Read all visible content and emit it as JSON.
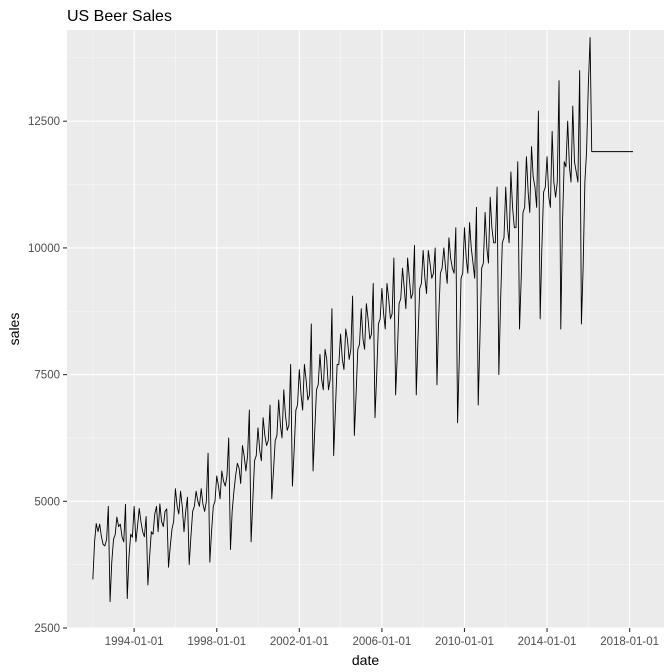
{
  "chart_data": {
    "type": "line",
    "title": "US Beer Sales",
    "xlabel": "date",
    "ylabel": "sales",
    "x_range": [
      "1990-10-01",
      "2019-09-01"
    ],
    "y_range": [
      2500,
      14300
    ],
    "x_ticks": [
      "1994-01-01",
      "1998-01-01",
      "2002-01-01",
      "2006-01-01",
      "2010-01-01",
      "2014-01-01",
      "2018-01-01"
    ],
    "y_ticks": [
      2500,
      5000,
      7500,
      10000,
      12500
    ],
    "grid": true,
    "theme": "ggplot2 grey",
    "colors": {
      "panel": "#ebebeb",
      "grid_major": "#ffffff",
      "grid_minor": "#f7f7f7",
      "line": "#000000"
    },
    "series": [
      {
        "monthly_start": "1992-01-01",
        "values": [
          3460,
          4200,
          4560,
          4400,
          4550,
          4300,
          4150,
          4120,
          4250,
          4900,
          3020,
          3800,
          4250,
          4350,
          4690,
          4500,
          4550,
          4300,
          4200,
          4940,
          3080,
          3900,
          4350,
          4290,
          4900,
          4200,
          4500,
          4860,
          4600,
          4400,
          4300,
          4700,
          3350,
          3900,
          4400,
          4350,
          4750,
          4900,
          4400,
          4950,
          4600,
          4500,
          4800,
          4850,
          3700,
          4100,
          4450,
          4600,
          5250,
          4900,
          4750,
          5200,
          4900,
          4400,
          4800,
          5080,
          3750,
          4300,
          4800,
          4900,
          5200,
          5000,
          4900,
          5250,
          4950,
          4800,
          5000,
          5950,
          3800,
          4400,
          4900,
          5000,
          5500,
          5300,
          5050,
          5600,
          5400,
          5300,
          5500,
          6250,
          4050,
          4800,
          5200,
          5500,
          5750,
          5650,
          5350,
          6100,
          5900,
          5600,
          5900,
          6800,
          4200,
          5000,
          5800,
          5900,
          6450,
          6000,
          5800,
          6650,
          6300,
          6100,
          6200,
          6900,
          5050,
          5600,
          6200,
          6300,
          7000,
          6500,
          6250,
          7200,
          6700,
          6400,
          6500,
          7700,
          5300,
          6000,
          6800,
          6900,
          7600,
          7100,
          6800,
          7700,
          7400,
          7000,
          7100,
          8500,
          5600,
          6400,
          7200,
          7300,
          7900,
          7400,
          7200,
          8000,
          7800,
          7200,
          7400,
          8800,
          5900,
          6800,
          7700,
          7700,
          8300,
          7800,
          7600,
          8400,
          8200,
          7800,
          8000,
          9050,
          6300,
          7100,
          8000,
          8100,
          8800,
          8200,
          8000,
          8900,
          8600,
          8200,
          8300,
          9300,
          6650,
          7500,
          8500,
          8600,
          9200,
          8700,
          8400,
          9300,
          9000,
          8600,
          8700,
          9800,
          7100,
          7900,
          8900,
          9000,
          9600,
          9200,
          8800,
          9800,
          9400,
          9000,
          9100,
          10050,
          7100,
          8200,
          9200,
          9300,
          9950,
          9400,
          9100,
          9950,
          9700,
          9400,
          9500,
          10000,
          7300,
          8600,
          9500,
          9600,
          10000,
          9600,
          9300,
          10200,
          9800,
          9600,
          9500,
          10400,
          6550,
          7800,
          9400,
          9500,
          10400,
          9800,
          9500,
          10500,
          10000,
          9700,
          9400,
          10800,
          6900,
          8200,
          9600,
          9700,
          10700,
          10000,
          9700,
          11000,
          10400,
          10100,
          10100,
          11200,
          7500,
          8900,
          10100,
          10200,
          11200,
          10400,
          10100,
          11500,
          10800,
          10400,
          10400,
          11700,
          8400,
          9400,
          10700,
          10800,
          11800,
          11100,
          10700,
          12000,
          11400,
          11200,
          10800,
          12700,
          8600,
          10000,
          11100,
          11200,
          11800,
          11000,
          10800,
          12300,
          11300,
          11000,
          11300,
          13300,
          8400,
          10500,
          11700,
          11600,
          12500,
          11600,
          11300,
          12800,
          11700,
          11500,
          11300,
          13500,
          8500,
          9600,
          11300,
          11900,
          13200,
          14150,
          11900,
          11900,
          11900,
          11900,
          11900,
          11900,
          11900,
          11900,
          11900,
          11900,
          11900,
          11900,
          11900,
          11900,
          11900,
          11900,
          11900,
          11900,
          11900,
          11900,
          11900,
          11900,
          11900,
          11900,
          11900
        ]
      }
    ]
  }
}
